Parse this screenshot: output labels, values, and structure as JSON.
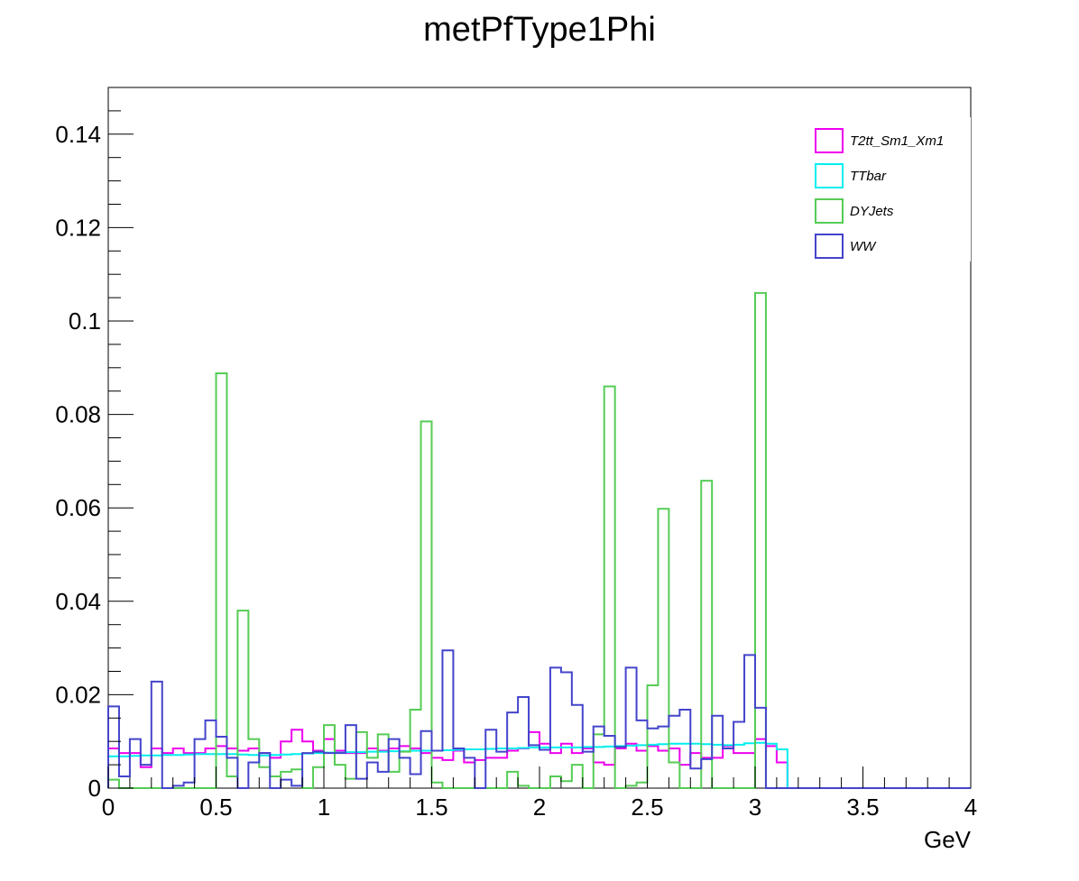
{
  "chart_data": {
    "type": "step-histogram",
    "title": "metPfType1Phi",
    "xlabel": "GeV",
    "ylabel": "",
    "xlim": [
      0,
      4
    ],
    "ylim": [
      0,
      0.15
    ],
    "bin_width": 0.05,
    "xticks": [
      {
        "value": 0,
        "label": "0"
      },
      {
        "value": 0.5,
        "label": "0.5"
      },
      {
        "value": 1,
        "label": "1"
      },
      {
        "value": 1.5,
        "label": "1.5"
      },
      {
        "value": 2,
        "label": "2"
      },
      {
        "value": 2.5,
        "label": "2.5"
      },
      {
        "value": 3,
        "label": "3"
      },
      {
        "value": 3.5,
        "label": "3.5"
      },
      {
        "value": 4,
        "label": "4"
      }
    ],
    "yticks": [
      {
        "value": 0,
        "label": "0"
      },
      {
        "value": 0.02,
        "label": "0.02"
      },
      {
        "value": 0.04,
        "label": "0.04"
      },
      {
        "value": 0.06,
        "label": "0.06"
      },
      {
        "value": 0.08,
        "label": "0.08"
      },
      {
        "value": 0.1,
        "label": "0.1"
      },
      {
        "value": 0.12,
        "label": "0.12"
      },
      {
        "value": 0.14,
        "label": "0.14"
      }
    ],
    "legend_position": "top-right",
    "series": [
      {
        "name": "T2tt_Sm1_Xm1",
        "color": "#ee00ee",
        "values": [
          0.0085,
          0.0075,
          0.0075,
          0.0045,
          0.0085,
          0.0075,
          0.0085,
          0.0075,
          0.0075,
          0.0085,
          0.009,
          0.0085,
          0.008,
          0.0085,
          0.0075,
          0.0065,
          0.01,
          0.0125,
          0.01,
          0.008,
          0.0105,
          0.008,
          0.0075,
          0.0075,
          0.0085,
          0.008,
          0.0085,
          0.009,
          0.0085,
          0.0075,
          0.0065,
          0.006,
          0.008,
          0.0055,
          0.006,
          0.0065,
          0.0065,
          0.008,
          0.0085,
          0.012,
          0.0095,
          0.0075,
          0.0095,
          0.0075,
          0.0085,
          0.0055,
          0.005,
          0.0085,
          0.0095,
          0.008,
          0.009,
          0.008,
          0.0085,
          0.005,
          0.0075,
          0.0065,
          0.0065,
          0.009,
          0.0075,
          0.0075,
          0.0105,
          0.009,
          0.0055,
          0,
          0,
          0,
          0,
          0,
          0,
          0,
          0,
          0,
          0,
          0,
          0,
          0,
          0,
          0,
          0,
          0
        ]
      },
      {
        "name": "TTbar",
        "color": "#00eeee",
        "values": [
          0.0068,
          0.0068,
          0.0069,
          0.007,
          0.007,
          0.0071,
          0.0071,
          0.0072,
          0.0073,
          0.0073,
          0.0073,
          0.0073,
          0.0072,
          0.0071,
          0.007,
          0.0071,
          0.0072,
          0.0073,
          0.0074,
          0.0075,
          0.0076,
          0.0076,
          0.0077,
          0.0077,
          0.0078,
          0.0078,
          0.0079,
          0.0079,
          0.008,
          0.008,
          0.008,
          0.0081,
          0.0082,
          0.0083,
          0.0083,
          0.0084,
          0.0085,
          0.0085,
          0.0086,
          0.0087,
          0.0087,
          0.0087,
          0.0087,
          0.0087,
          0.0088,
          0.0088,
          0.0089,
          0.009,
          0.0091,
          0.0092,
          0.0093,
          0.0094,
          0.0095,
          0.0095,
          0.0095,
          0.0094,
          0.0093,
          0.0092,
          0.0093,
          0.0096,
          0.0097,
          0.0095,
          0.0083,
          0,
          0,
          0,
          0,
          0,
          0,
          0,
          0,
          0,
          0,
          0,
          0,
          0,
          0,
          0,
          0,
          0
        ]
      },
      {
        "name": "DYJets",
        "color": "#55cc55",
        "values": [
          0.0018,
          0,
          0,
          0,
          0,
          0,
          0,
          0,
          0,
          0,
          0.0888,
          0.0025,
          0.038,
          0.0105,
          0.0045,
          0.0025,
          0.0035,
          0.004,
          0,
          0.0045,
          0.0135,
          0.005,
          0.002,
          0.012,
          0.0065,
          0.0115,
          0.0035,
          0.0078,
          0.0168,
          0.0785,
          0.0012,
          0,
          0,
          0,
          0,
          0,
          0,
          0.0035,
          0.0005,
          0,
          0,
          0.0025,
          0.0015,
          0.005,
          0,
          0.0115,
          0.086,
          0,
          0.0005,
          0.0012,
          0.022,
          0.0598,
          0.0055,
          0,
          0,
          0.0658,
          0,
          0,
          0,
          0,
          0.106,
          0,
          0,
          0,
          0,
          0,
          0,
          0,
          0,
          0,
          0,
          0,
          0,
          0,
          0,
          0,
          0,
          0,
          0,
          0
        ]
      },
      {
        "name": "WW",
        "color": "#4444cc",
        "values": [
          0.0175,
          0.0025,
          0.0105,
          0.005,
          0.0228,
          0,
          0.0005,
          0.0012,
          0.0105,
          0.0145,
          0.011,
          0.0065,
          0,
          0.0055,
          0.0075,
          0,
          0.0018,
          0.0005,
          0.0075,
          0.0078,
          0.0075,
          0.0075,
          0.0135,
          0.002,
          0.0055,
          0.0035,
          0.0105,
          0.0065,
          0.003,
          0.0122,
          0.008,
          0.0295,
          0.0085,
          0.0065,
          0,
          0.0125,
          0.0078,
          0.0162,
          0.0195,
          0.0092,
          0.0082,
          0.0258,
          0.0248,
          0.0178,
          0.0078,
          0.0132,
          0.0112,
          0.0088,
          0.0258,
          0.0145,
          0.0128,
          0.0132,
          0.0155,
          0.0168,
          0.0042,
          0.0062,
          0.0155,
          0.0085,
          0.0142,
          0.0285,
          0.0172,
          0,
          0,
          0,
          0,
          0,
          0,
          0,
          0,
          0,
          0,
          0,
          0,
          0,
          0,
          0,
          0,
          0,
          0,
          0
        ]
      }
    ]
  }
}
